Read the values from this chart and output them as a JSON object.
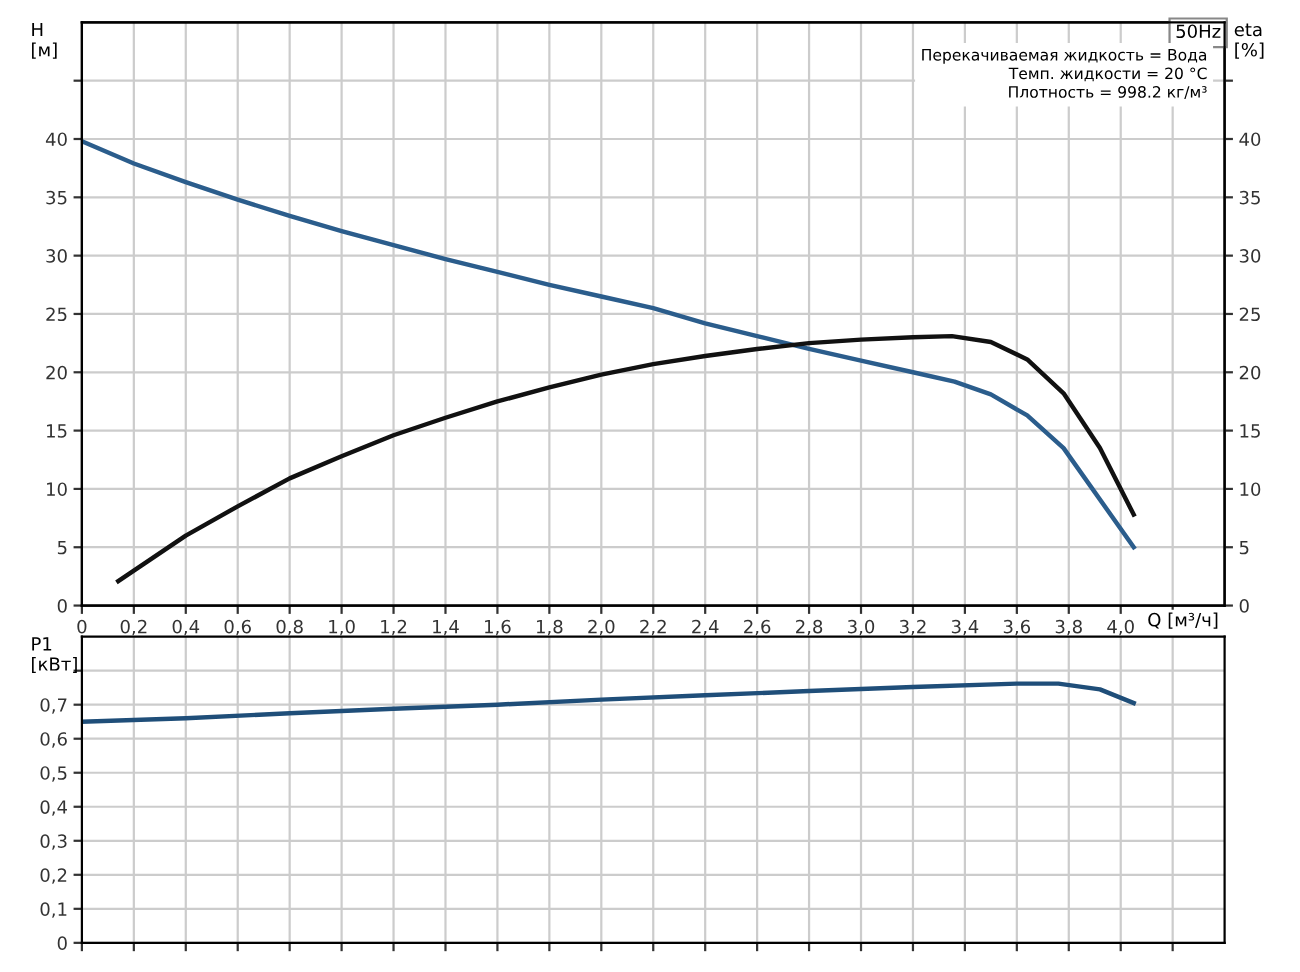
{
  "chart_data": [
    {
      "type": "line",
      "xlabel": "Q [м³/ч]",
      "ylabel": "H\n[м]",
      "y2label": "eta\n[%]",
      "annotations": [
        "50Hz",
        "Перекачиваемая жидкость = Вода\nТемп. жидкости = 20 °C\nПлотность = 998.2 кг/м³"
      ],
      "series": [
        {
          "color": "#2b5d8c",
          "x": [
            0,
            0.2,
            0.4,
            0.6,
            0.8,
            1.0,
            1.2,
            1.4,
            1.6,
            1.8,
            2.0,
            2.2,
            2.4,
            2.6,
            2.8,
            3.0,
            3.2,
            3.36,
            3.5,
            3.64,
            3.78,
            4.05
          ],
          "values": [
            39.8,
            37.9,
            36.3,
            34.8,
            33.4,
            32.1,
            30.9,
            29.7,
            28.6,
            27.5,
            26.5,
            25.5,
            24.2,
            23.1,
            22.0,
            21.0,
            20.0,
            19.2,
            18.1,
            16.3,
            13.5,
            5.0
          ]
        },
        {
          "color": "#111111",
          "axis": "y2",
          "x": [
            0.14,
            0.4,
            0.6,
            0.8,
            1.0,
            1.2,
            1.4,
            1.6,
            1.8,
            2.0,
            2.2,
            2.4,
            2.6,
            2.8,
            3.0,
            3.2,
            3.35,
            3.5,
            3.64,
            3.78,
            3.92,
            4.05
          ],
          "values": [
            2.1,
            6.0,
            8.5,
            10.9,
            12.8,
            14.6,
            16.1,
            17.5,
            18.7,
            19.8,
            20.7,
            21.4,
            22.0,
            22.5,
            22.8,
            23.0,
            23.1,
            22.6,
            21.1,
            18.2,
            13.5,
            7.8
          ]
        }
      ],
      "xlim": [
        0,
        4.4
      ],
      "xticks": [
        0,
        {
          "value": 0.2,
          "label": "0,2"
        },
        {
          "value": 0.4,
          "label": "0,4"
        },
        {
          "value": 0.6,
          "label": "0,6"
        },
        {
          "value": 0.8,
          "label": "0,8"
        },
        {
          "value": 1.0,
          "label": "1,0"
        },
        {
          "value": 1.2,
          "label": "1,2"
        },
        {
          "value": 1.4,
          "label": "1,4"
        },
        {
          "value": 1.6,
          "label": "1,6"
        },
        {
          "value": 1.8,
          "label": "1,8"
        },
        {
          "value": 2.0,
          "label": "2,0"
        },
        {
          "value": 2.2,
          "label": "2,2"
        },
        {
          "value": 2.4,
          "label": "2,4"
        },
        {
          "value": 2.6,
          "label": "2,6"
        },
        {
          "value": 2.8,
          "label": "2,8"
        },
        {
          "value": 3.0,
          "label": "3,0"
        },
        {
          "value": 3.2,
          "label": "3,2"
        },
        {
          "value": 3.4,
          "label": "3,4"
        },
        {
          "value": 3.6,
          "label": "3,6"
        },
        {
          "value": 3.8,
          "label": "3,8"
        },
        {
          "value": 4.0,
          "label": "4,0"
        },
        {
          "value": 4.2,
          "label": null
        }
      ],
      "ylim": [
        0,
        50
      ],
      "yticks": [
        0,
        5,
        10,
        15,
        20,
        25,
        30,
        35,
        40,
        {
          "value": 45,
          "label": null
        }
      ],
      "y2lim": [
        0,
        50
      ],
      "y2ticks": [
        0,
        5,
        10,
        15,
        20,
        25,
        30,
        35,
        40,
        {
          "value": 45,
          "label": null
        }
      ],
      "grid": true
    },
    {
      "type": "line",
      "ylabel": "P1\n[кВт]",
      "series": [
        {
          "color": "#1f4e79",
          "x": [
            0,
            0.4,
            0.8,
            1.2,
            1.6,
            2.0,
            2.4,
            2.8,
            3.2,
            3.6,
            3.76,
            3.92,
            4.05
          ],
          "values": [
            0.65,
            0.66,
            0.675,
            0.688,
            0.7,
            0.715,
            0.728,
            0.74,
            0.752,
            0.762,
            0.762,
            0.745,
            0.705
          ]
        }
      ],
      "xlim": [
        0,
        4.4
      ],
      "xticks": [
        0,
        0.2,
        0.4,
        0.6,
        0.8,
        1.0,
        1.2,
        1.4,
        1.6,
        1.8,
        2.0,
        2.2,
        2.4,
        2.6,
        2.8,
        3.0,
        3.2,
        3.4,
        3.6,
        3.8,
        4.0,
        4.2
      ],
      "ylim": [
        0,
        0.9
      ],
      "yticks": [
        0,
        {
          "value": 0.1,
          "label": "0,1"
        },
        {
          "value": 0.2,
          "label": "0,2"
        },
        {
          "value": 0.3,
          "label": "0,3"
        },
        {
          "value": 0.4,
          "label": "0,4"
        },
        {
          "value": 0.5,
          "label": "0,5"
        },
        {
          "value": 0.6,
          "label": "0,6"
        },
        {
          "value": 0.7,
          "label": "0,7"
        },
        {
          "value": 0.8,
          "label": null
        }
      ],
      "tick_labels": "y",
      "grid": true
    }
  ]
}
